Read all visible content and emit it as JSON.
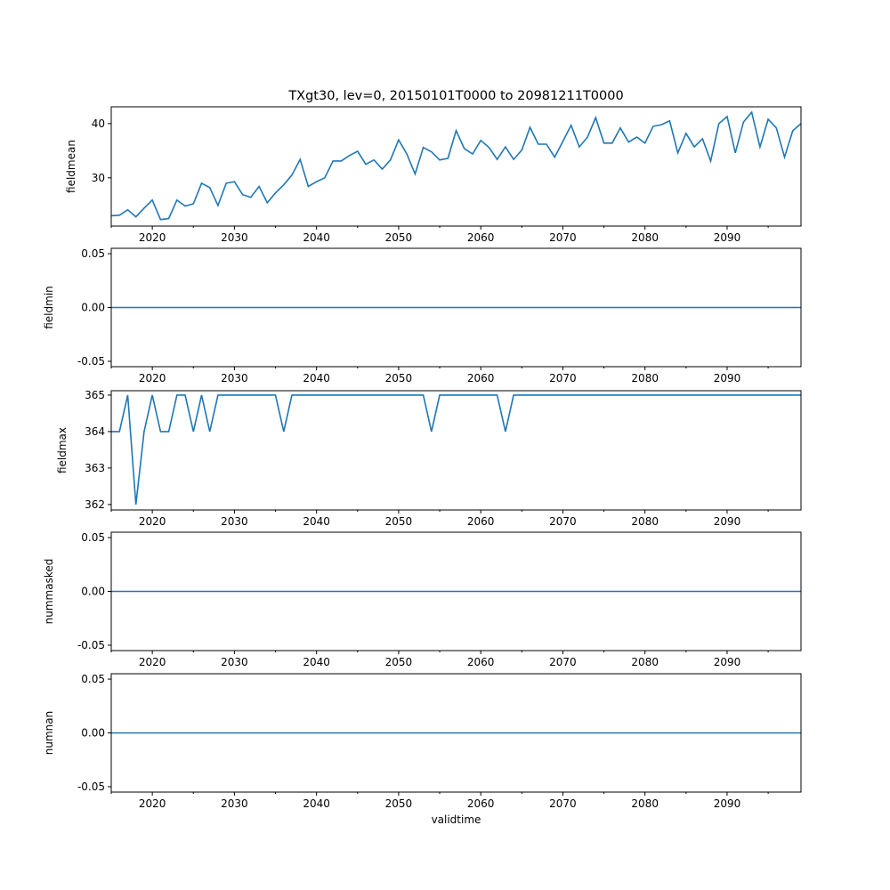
{
  "chart_data": [
    {
      "type": "line",
      "title": "TXgt30, lev=0, 20150101T0000 to 20981211T0000",
      "ylabel": "fieldmean",
      "xlabel": "",
      "xlim": [
        2015,
        2099
      ],
      "ylim": [
        21.1,
        43.1
      ],
      "yticks": [
        30,
        40
      ],
      "x_start": 2015,
      "values": [
        23.0,
        23.1,
        24.1,
        22.8,
        24.4,
        25.9,
        22.3,
        22.5,
        25.9,
        24.8,
        25.2,
        29.0,
        28.2,
        24.9,
        29.0,
        29.3,
        26.9,
        26.4,
        28.4,
        25.4,
        27.2,
        28.7,
        30.5,
        33.4,
        28.4,
        29.3,
        30.0,
        33.1,
        33.1,
        34.1,
        34.9,
        32.5,
        33.3,
        31.6,
        33.3,
        37.0,
        34.4,
        30.7,
        35.6,
        34.8,
        33.3,
        33.6,
        38.7,
        35.4,
        34.4,
        36.9,
        35.6,
        33.4,
        35.7,
        33.4,
        35.1,
        39.3,
        36.2,
        36.2,
        33.8,
        36.7,
        39.7,
        35.7,
        37.5,
        41.1,
        36.4,
        36.4,
        39.2,
        36.6,
        37.5,
        36.4,
        39.5,
        39.8,
        40.5,
        34.6,
        38.2,
        35.7,
        37.2,
        33.1,
        40.0,
        41.3,
        34.6,
        40.3,
        42.1,
        35.7,
        40.8,
        39.2,
        33.8,
        38.7,
        40.0
      ]
    },
    {
      "type": "line",
      "title": "",
      "ylabel": "fieldmin",
      "xlabel": "",
      "xlim": [
        2015,
        2099
      ],
      "ylim": [
        -0.055,
        0.055
      ],
      "yticks": [
        "0.05",
        "0.00",
        "-0.05"
      ],
      "x_start": 2015,
      "constant": 0
    },
    {
      "type": "line",
      "title": "",
      "ylabel": "fieldmax",
      "xlabel": "",
      "xlim": [
        2015,
        2099
      ],
      "ylim": [
        361.85,
        365.12
      ],
      "yticks": [
        362,
        363,
        364,
        365
      ],
      "x_start": 2015,
      "values": [
        364,
        364,
        365,
        362,
        364,
        365,
        364,
        364,
        365,
        365,
        364,
        365,
        364,
        365,
        365,
        365,
        365,
        365,
        365,
        365,
        365,
        364,
        365,
        365,
        365,
        365,
        365,
        365,
        365,
        365,
        365,
        365,
        365,
        365,
        365,
        365,
        365,
        365,
        365,
        364,
        365,
        365,
        365,
        365,
        365,
        365,
        365,
        365,
        364,
        365,
        365,
        365,
        365,
        365,
        365,
        365,
        365,
        365,
        365,
        365,
        365,
        365,
        365,
        365,
        365,
        365,
        365,
        365,
        365,
        365,
        365,
        365,
        365,
        365,
        365,
        365,
        365,
        365,
        365,
        365,
        365,
        365,
        365,
        365,
        365
      ]
    },
    {
      "type": "line",
      "title": "",
      "ylabel": "nummasked",
      "xlabel": "",
      "xlim": [
        2015,
        2099
      ],
      "ylim": [
        -0.055,
        0.055
      ],
      "yticks": [
        "0.05",
        "0.00",
        "-0.05"
      ],
      "x_start": 2015,
      "constant": 0
    },
    {
      "type": "line",
      "title": "",
      "ylabel": "numnan",
      "xlabel": "validtime",
      "xlim": [
        2015,
        2099
      ],
      "ylim": [
        -0.055,
        0.055
      ],
      "yticks": [
        "0.05",
        "0.00",
        "-0.05"
      ],
      "x_start": 2015,
      "constant": 0
    }
  ],
  "xticks": [
    2020,
    2030,
    2040,
    2050,
    2060,
    2070,
    2080,
    2090
  ],
  "line_color": "#1f77b4"
}
